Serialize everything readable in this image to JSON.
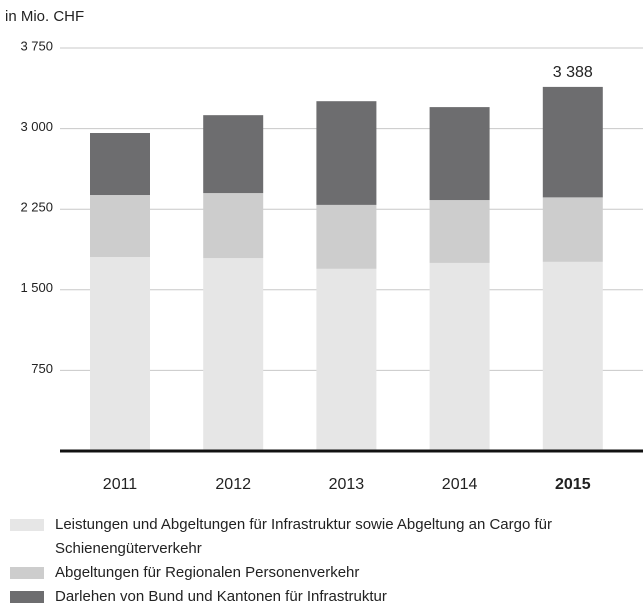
{
  "chart_data": {
    "type": "stacked_bar",
    "y_label": "in Mio. CHF",
    "categories": [
      "2011",
      "2012",
      "2013",
      "2014",
      "2015"
    ],
    "bold_categories": [
      4
    ],
    "series": [
      {
        "name": "Leistungen und Abgeltungen für Infrastruktur sowie Abgeltung an Cargo für Schienengüterverkehr",
        "color": "#e6e6e6",
        "values": [
          1805,
          1795,
          1695,
          1750,
          1760
        ]
      },
      {
        "name": "Abgeltungen für Regionalen Personenverkehr",
        "color": "#cdcdcd",
        "values": [
          577,
          605,
          595,
          585,
          600
        ]
      },
      {
        "name": "Darlehen von Bund und Kantonen für Infrastruktur",
        "color": "#6d6d6f",
        "values": [
          577,
          725,
          965,
          865,
          1028
        ]
      }
    ],
    "annotations": [
      {
        "category": 4,
        "value": 3388,
        "label": "3 388"
      }
    ],
    "ylim": [
      0,
      3750
    ],
    "yticks": [
      {
        "value": 750,
        "label": "750"
      },
      {
        "value": 1500,
        "label": "1 500"
      },
      {
        "value": 2250,
        "label": "2 250"
      },
      {
        "value": 3000,
        "label": "3 000"
      },
      {
        "value": 3750,
        "label": "3 750"
      }
    ],
    "grid": true
  }
}
